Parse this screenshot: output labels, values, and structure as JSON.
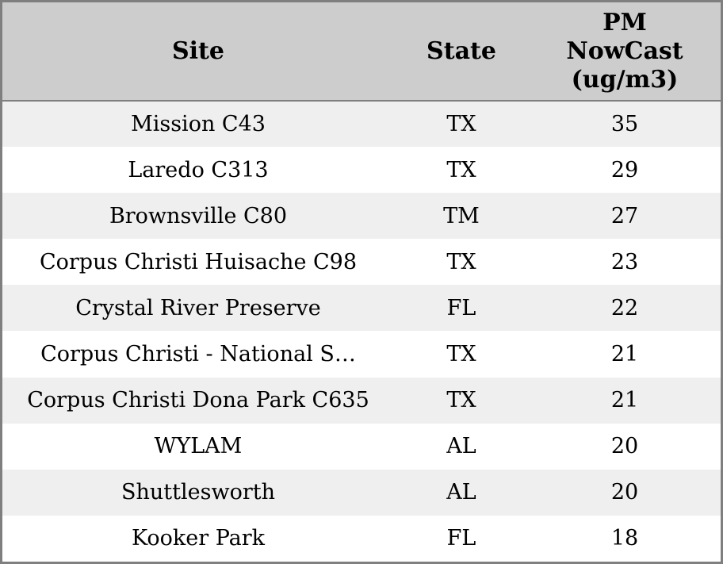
{
  "colors": {
    "header_bg": "#cdcdcd",
    "row_alt_bg": "#efefef",
    "row_bg": "#ffffff",
    "border": "#7f7f7f",
    "text": "#000000"
  },
  "table": {
    "columns": [
      {
        "id": "site",
        "label": "Site"
      },
      {
        "id": "state",
        "label": "State"
      },
      {
        "id": "pm_nowcast",
        "label": "PM\nNowCast\n(ug/m3)"
      }
    ],
    "rows": [
      {
        "site": "Mission C43",
        "state": "TX",
        "pm_nowcast": 35
      },
      {
        "site": "Laredo C313",
        "state": "TX",
        "pm_nowcast": 29
      },
      {
        "site": "Brownsville C80",
        "state": "TM",
        "pm_nowcast": 27
      },
      {
        "site": "Corpus Christi Huisache C98",
        "state": "TX",
        "pm_nowcast": 23
      },
      {
        "site": "Crystal River Preserve",
        "state": "FL",
        "pm_nowcast": 22
      },
      {
        "site": "Corpus Christi - National S…",
        "state": "TX",
        "pm_nowcast": 21
      },
      {
        "site": "Corpus Christi Dona Park C635",
        "state": "TX",
        "pm_nowcast": 21
      },
      {
        "site": "WYLAM",
        "state": "AL",
        "pm_nowcast": 20
      },
      {
        "site": "Shuttlesworth",
        "state": "AL",
        "pm_nowcast": 20
      },
      {
        "site": "Kooker Park",
        "state": "FL",
        "pm_nowcast": 18
      }
    ]
  }
}
